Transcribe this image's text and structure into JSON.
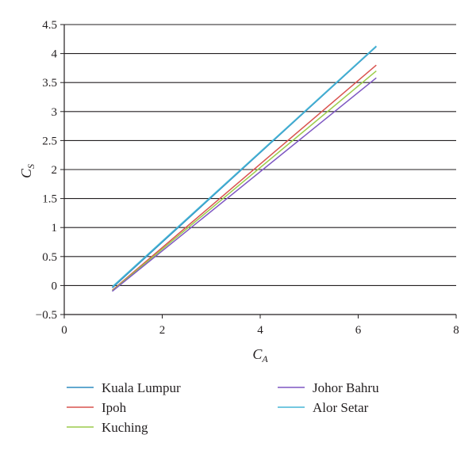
{
  "chart_data": {
    "type": "line",
    "xlabel": "C",
    "xlabel_sub": "A",
    "ylabel": "C",
    "ylabel_sub": "S",
    "xlim": [
      0,
      8
    ],
    "ylim": [
      -0.5,
      4.5
    ],
    "xticks": [
      0,
      2,
      4,
      6,
      8
    ],
    "xtick_labels": [
      "0",
      "2",
      "4",
      "6",
      "8"
    ],
    "yticks": [
      -0.5,
      0,
      0.5,
      1,
      1.5,
      2,
      2.5,
      3,
      3.5,
      4,
      4.5
    ],
    "ytick_labels": [
      "−0.5",
      "0",
      "0.5",
      "1",
      "1.5",
      "2",
      "2.5",
      "3",
      "3.5",
      "4",
      "4.5"
    ],
    "grid": "horizontal",
    "legend_position": "bottom",
    "series": [
      {
        "name": "Kuala Lumpur",
        "color": "#2e8bbf",
        "x": [
          0.98,
          6.37
        ],
        "y": [
          -0.04,
          4.12
        ]
      },
      {
        "name": "Ipoh",
        "color": "#d9534f",
        "x": [
          0.98,
          6.37
        ],
        "y": [
          -0.08,
          3.8
        ]
      },
      {
        "name": "Kuching",
        "color": "#9ccc4a",
        "x": [
          0.98,
          6.37
        ],
        "y": [
          -0.09,
          3.7
        ]
      },
      {
        "name": "Johor Bahru",
        "color": "#7e57c2",
        "x": [
          0.98,
          6.37
        ],
        "y": [
          -0.1,
          3.58
        ]
      },
      {
        "name": "Alor Setar",
        "color": "#46b6d6",
        "x": [
          0.98,
          6.37
        ],
        "y": [
          -0.02,
          4.13
        ]
      }
    ]
  }
}
